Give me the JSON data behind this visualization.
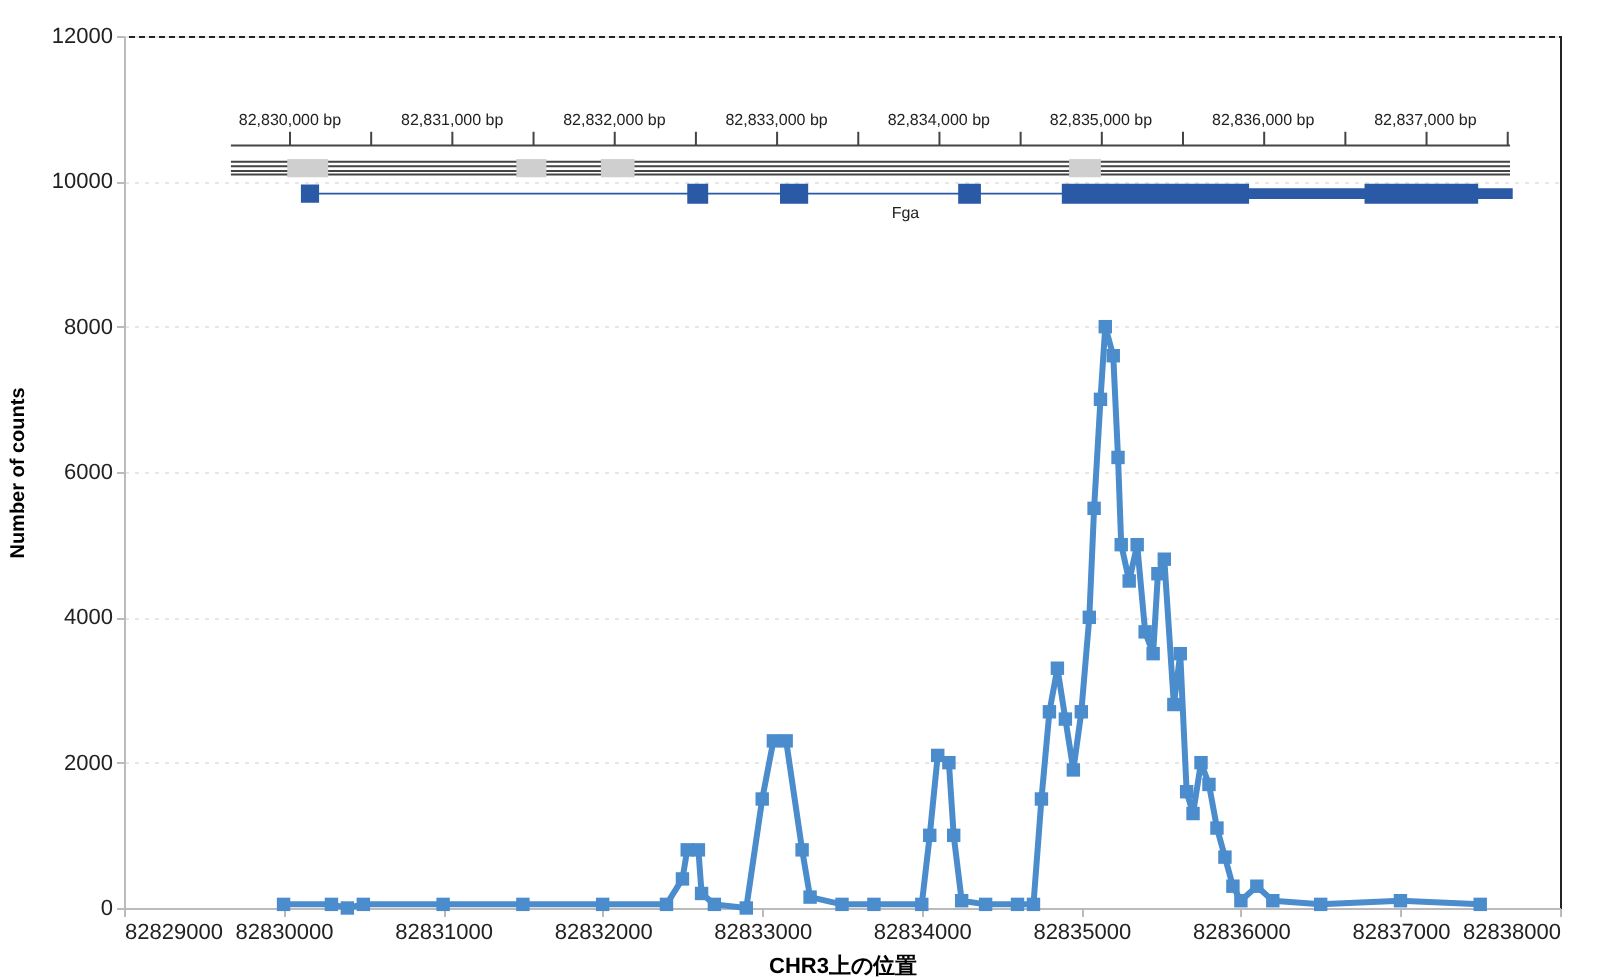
{
  "chart_data": {
    "type": "line",
    "xlabel": "CHR3上の位置",
    "ylabel": "Number of counts",
    "annotations": [
      "82,830,000 bp",
      "82,831,000 bp",
      "82,832,000 bp",
      "82,833,000 bp",
      "82,834,000 bp",
      "82,835,000 bp",
      "82,836,000 bp",
      "82,837,000 bp",
      "Fga"
    ],
    "xlim": [
      82829000,
      82838000
    ],
    "xticks": [
      82829000,
      82830000,
      82831000,
      82832000,
      82833000,
      82834000,
      82835000,
      82836000,
      82837000,
      82838000
    ],
    "ylim": [
      0,
      12000
    ],
    "yticks": [
      0,
      2000,
      4000,
      6000,
      8000,
      10000,
      12000
    ],
    "grid": "y",
    "marker": "square",
    "series": [
      {
        "color": "#4a8ccc",
        "x": [
          82830000,
          82830300,
          82830400,
          82830500,
          82831000,
          82831500,
          82832000,
          82832400,
          82832500,
          82832530,
          82832600,
          82832620,
          82832700,
          82832900,
          82833000,
          82833070,
          82833150,
          82833250,
          82833300,
          82833500,
          82833700,
          82834000,
          82834050,
          82834100,
          82834170,
          82834200,
          82834250,
          82834400,
          82834600,
          82834700,
          82834750,
          82834800,
          82834850,
          82834900,
          82834950,
          82835000,
          82835050,
          82835080,
          82835120,
          82835150,
          82835200,
          82835230,
          82835250,
          82835300,
          82835350,
          82835400,
          82835450,
          82835480,
          82835520,
          82835580,
          82835620,
          82835660,
          82835700,
          82835750,
          82835800,
          82835850,
          82835900,
          82835950,
          82836000,
          82836100,
          82836200,
          82836500,
          82837000,
          82837500
        ],
        "values": [
          50,
          50,
          0,
          50,
          50,
          50,
          50,
          50,
          400,
          800,
          800,
          200,
          50,
          0,
          1500,
          2300,
          2300,
          800,
          150,
          50,
          50,
          50,
          1000,
          2100,
          2000,
          1000,
          100,
          50,
          50,
          50,
          1500,
          2700,
          3300,
          2600,
          1900,
          2700,
          4000,
          5500,
          7000,
          8000,
          7600,
          6200,
          5000,
          4500,
          5000,
          3800,
          3500,
          4600,
          4800,
          2800,
          3500,
          1600,
          1300,
          2000,
          1700,
          1100,
          700,
          300,
          100,
          300,
          100,
          50,
          100,
          50
        ]
      }
    ]
  }
}
